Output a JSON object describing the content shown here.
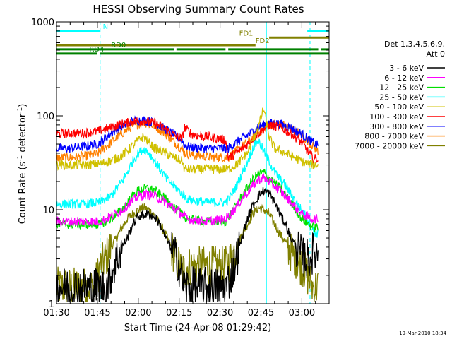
{
  "chart_data": {
    "type": "line",
    "title": "HESSI Observing Summary Count Rates",
    "xlabel": "Start Time (24-Apr-08 01:29:42)",
    "ylabel_main": "Count Rate (s",
    "ylabel_sup1": "-1",
    "ylabel_mid": " detector",
    "ylabel_sup2": "-1",
    "ylabel_end": ")",
    "yscale": "log",
    "xlim_minutes": [
      0,
      100
    ],
    "ylim": [
      1,
      1000
    ],
    "x_ticks": [
      {
        "label": "01:30",
        "m": 0
      },
      {
        "label": "01:45",
        "m": 15
      },
      {
        "label": "02:00",
        "m": 30
      },
      {
        "label": "02:15",
        "m": 45
      },
      {
        "label": "02:30",
        "m": 60
      },
      {
        "label": "02:45",
        "m": 75
      },
      {
        "label": "03:00",
        "m": 90
      }
    ],
    "y_ticks": [
      {
        "label": "1",
        "v": 1
      },
      {
        "label": "10",
        "v": 10
      },
      {
        "label": "100",
        "v": 100
      },
      {
        "label": "1000",
        "v": 1000
      }
    ],
    "legend": {
      "placement": "right",
      "header1": "Det 1,3,4,5,6,9,",
      "header2": "Att 0",
      "entries": [
        {
          "label": "3 - 6 keV",
          "color": "#000000"
        },
        {
          "label": "6 - 12 keV",
          "color": "#ff00ff"
        },
        {
          "label": "12 - 25 keV",
          "color": "#00e000"
        },
        {
          "label": "25 - 50 keV",
          "color": "#00ffff"
        },
        {
          "label": "50 - 100 keV",
          "color": "#d0c000"
        },
        {
          "label": "100 - 300 keV",
          "color": "#ff0000"
        },
        {
          "label": "300 - 800 keV",
          "color": "#0000ff"
        },
        {
          "label": "800 - 7000 keV",
          "color": "#ff8000"
        },
        {
          "label": "7000 - 20000 keV",
          "color": "#808000"
        }
      ]
    },
    "flag_bars": [
      {
        "label": "N",
        "color": "#00ffff",
        "value": 800,
        "segments": [
          [
            0,
            16
          ],
          [
            92,
            100
          ]
        ],
        "label_m": 17
      },
      {
        "label": "FD1",
        "color": "#808000",
        "value": 680,
        "segments": [
          [
            78,
            100
          ]
        ],
        "label_m": 67
      },
      {
        "label": "FD2",
        "color": "#808000",
        "value": 565,
        "segments": [
          [
            0,
            73
          ]
        ],
        "label_m": 73
      },
      {
        "label": "RD0",
        "color": "#008000",
        "value": 510,
        "segments": [
          [
            0,
            43
          ],
          [
            44,
            62
          ],
          [
            63,
            96
          ],
          [
            97,
            100
          ]
        ],
        "label_m": 20
      },
      {
        "label": "RD4",
        "color": "#008000",
        "value": 460,
        "segments": [
          [
            0,
            15
          ],
          [
            16,
            100
          ]
        ],
        "label_m": 12
      }
    ],
    "vlines": [
      {
        "m": 0,
        "style": "solid"
      },
      {
        "m": 16,
        "style": "dashed"
      },
      {
        "m": 77,
        "style": "solid"
      },
      {
        "m": 93,
        "style": "dashed"
      }
    ],
    "series": [
      {
        "name": "3 - 6 keV",
        "color": "#000000",
        "x": [
          0,
          10,
          16,
          18,
          20,
          22,
          24,
          26,
          28,
          30,
          33,
          36,
          38,
          40,
          42,
          44,
          46,
          47,
          48,
          50,
          55,
          58,
          60,
          62,
          64,
          66,
          68,
          70,
          72,
          74,
          76,
          78,
          80,
          82,
          84,
          86,
          88,
          90,
          92,
          93,
          94,
          95,
          96
        ],
        "y": [
          1.5,
          1.5,
          1.5,
          1.5,
          2,
          3,
          4,
          5,
          7,
          8.5,
          9,
          8.5,
          7,
          5,
          4,
          3,
          2,
          1.5,
          1.5,
          1.5,
          1.5,
          1.5,
          1.5,
          1.5,
          2,
          3,
          5,
          8,
          11,
          14,
          16,
          15,
          12,
          9,
          7,
          5,
          4,
          3.2,
          3,
          3,
          3.5,
          3.5,
          3.5
        ]
      },
      {
        "name": "6 - 12 keV",
        "color": "#ff00ff",
        "x": [
          0,
          10,
          16,
          20,
          24,
          28,
          30,
          33,
          36,
          40,
          44,
          48,
          55,
          62,
          64,
          68,
          72,
          74,
          76,
          78,
          82,
          86,
          90,
          94,
          96
        ],
        "y": [
          7.5,
          7.5,
          7.5,
          8.5,
          10,
          12.5,
          14,
          14.5,
          14,
          12,
          10,
          8,
          7.5,
          8,
          9,
          13,
          18,
          21,
          22,
          20,
          16,
          12,
          9,
          8,
          8
        ]
      },
      {
        "name": "12 - 25 keV",
        "color": "#00e000",
        "x": [
          0,
          10,
          16,
          20,
          24,
          28,
          30,
          33,
          36,
          40,
          44,
          48,
          55,
          62,
          64,
          68,
          72,
          74,
          76,
          78,
          82,
          86,
          90,
          94,
          96
        ],
        "y": [
          7,
          7,
          7,
          8,
          10,
          14,
          16,
          17,
          16,
          13,
          10,
          8,
          7.5,
          7.5,
          9,
          14,
          21,
          24,
          25,
          22,
          17,
          12,
          8,
          6.5,
          6.5
        ]
      },
      {
        "name": "25 - 50 keV",
        "color": "#00ffff",
        "x": [
          0,
          10,
          16,
          20,
          24,
          26,
          28,
          30,
          32,
          34,
          36,
          38,
          40,
          44,
          48,
          55,
          62,
          64,
          66,
          68,
          70,
          72,
          74,
          76,
          78,
          80,
          84,
          88,
          92,
          94,
          96
        ],
        "y": [
          11.5,
          11.5,
          12,
          14,
          20,
          25,
          33,
          40,
          45,
          40,
          33,
          27,
          22,
          17,
          13,
          12,
          12,
          14,
          18,
          24,
          32,
          45,
          55,
          42,
          33,
          25,
          18,
          12,
          8,
          6,
          5.5
        ]
      },
      {
        "name": "50 - 100 keV",
        "color": "#d0c000",
        "x": [
          0,
          10,
          16,
          20,
          24,
          28,
          30,
          32,
          34,
          36,
          40,
          44,
          46,
          47,
          48,
          55,
          62,
          63,
          66,
          70,
          72,
          74,
          76,
          78,
          80,
          84,
          88,
          92,
          94,
          96
        ],
        "y": [
          30,
          30,
          31,
          33,
          38,
          48,
          55,
          60,
          52,
          45,
          40,
          35,
          33,
          27,
          27,
          27,
          27,
          27,
          30,
          40,
          55,
          75,
          120,
          60,
          45,
          40,
          35,
          31,
          30,
          30
        ]
      },
      {
        "name": "100 - 300 keV",
        "color": "#ff0000",
        "x": [
          0,
          5,
          10,
          15,
          16,
          20,
          24,
          28,
          32,
          36,
          40,
          44,
          46,
          47,
          50,
          55,
          60,
          62,
          63,
          66,
          70,
          74,
          78,
          82,
          86,
          90,
          94,
          96
        ],
        "y": [
          64,
          65,
          66,
          68,
          70,
          75,
          82,
          87,
          88,
          84,
          72,
          60,
          57,
          75,
          63,
          60,
          57,
          55,
          36,
          40,
          50,
          65,
          80,
          75,
          65,
          52,
          35,
          35
        ]
      },
      {
        "name": "300 - 800 keV",
        "color": "#0000ff",
        "x": [
          0,
          5,
          10,
          15,
          16,
          20,
          24,
          28,
          32,
          36,
          40,
          44,
          46,
          47,
          50,
          55,
          60,
          62,
          63,
          66,
          70,
          74,
          78,
          82,
          86,
          90,
          94,
          96
        ],
        "y": [
          45,
          45,
          47,
          50,
          52,
          65,
          78,
          88,
          90,
          84,
          72,
          60,
          55,
          48,
          46,
          45,
          45,
          45,
          45,
          52,
          62,
          76,
          84,
          82,
          74,
          64,
          52,
          48
        ]
      },
      {
        "name": "800 - 7000 keV",
        "color": "#ff8000",
        "x": [
          0,
          5,
          10,
          15,
          16,
          20,
          24,
          28,
          32,
          36,
          40,
          44,
          46,
          47,
          50,
          55,
          60,
          62,
          63,
          66,
          70,
          74,
          78,
          82,
          86,
          90,
          94,
          96
        ],
        "y": [
          36,
          36,
          37,
          39,
          42,
          52,
          65,
          78,
          85,
          78,
          64,
          50,
          44,
          40,
          38,
          37,
          36,
          36,
          36,
          42,
          52,
          66,
          80,
          82,
          74,
          62,
          48,
          42
        ]
      },
      {
        "name": "7000 - 20000 keV",
        "color": "#808000",
        "x": [
          0,
          5,
          10,
          14,
          16,
          18,
          20,
          22,
          24,
          26,
          28,
          30,
          32,
          34,
          36,
          38,
          40,
          42,
          44,
          46,
          48,
          55,
          62,
          64,
          66,
          68,
          70,
          72,
          74,
          76,
          78,
          80,
          82,
          84,
          86,
          88,
          90,
          92,
          94,
          96
        ],
        "y": [
          1.5,
          1.5,
          1.5,
          1.5,
          2.5,
          3,
          4,
          5,
          6.5,
          8,
          9,
          10,
          10.5,
          10,
          8.5,
          7,
          5.5,
          4,
          3,
          2.2,
          2.5,
          2.5,
          2.5,
          3,
          4,
          5.5,
          7,
          9,
          10.5,
          10,
          9,
          7,
          5.5,
          4.5,
          3.5,
          3,
          2.5,
          2,
          1.5,
          1.5
        ]
      }
    ],
    "footer_timestamp": "19-Mar-2010 18:34"
  }
}
